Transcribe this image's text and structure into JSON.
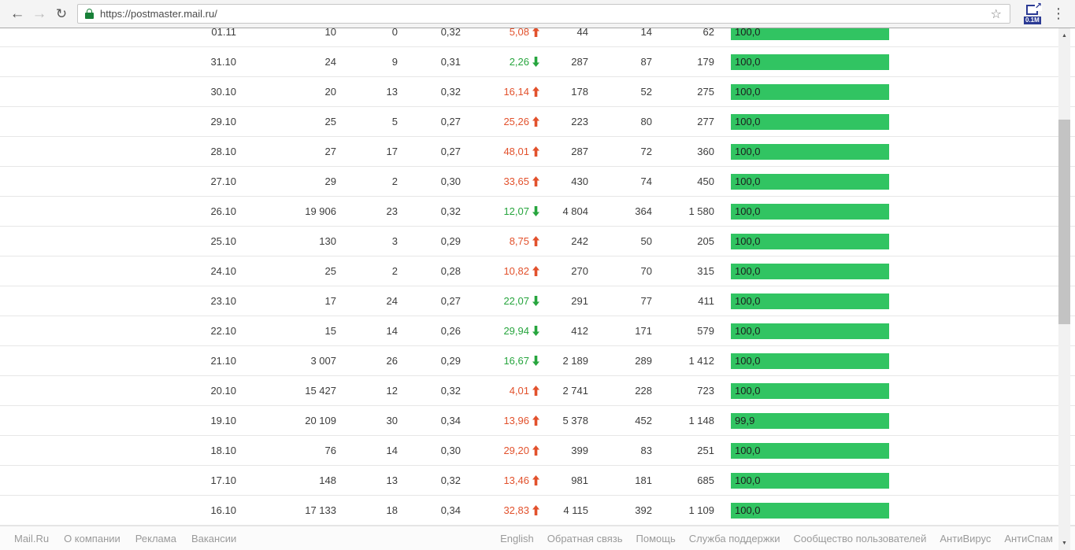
{
  "browser": {
    "url": "https://postmaster.mail.ru/",
    "extension_badge": "0.1M",
    "icons": {
      "back": "←",
      "forward": "→",
      "reload": "↻",
      "star": "☆",
      "menu": "⋮",
      "extension_arrow": "↗",
      "scroll_up": "▲",
      "scroll_down": "▼"
    }
  },
  "colors": {
    "bar_green": "#31c462",
    "arrow_up_red": "#e2512c",
    "arrow_down_green": "#27a53e",
    "lock_green": "#188038"
  },
  "table": {
    "rows": [
      {
        "date": "01.11",
        "v1": "10",
        "v2": "0",
        "v3": "0,32",
        "pct": "5,08",
        "trend": "up",
        "v4": "44",
        "v5": "14",
        "v6": "62",
        "bar_label": "100,0",
        "bar_value": 100.0
      },
      {
        "date": "31.10",
        "v1": "24",
        "v2": "9",
        "v3": "0,31",
        "pct": "2,26",
        "trend": "down",
        "v4": "287",
        "v5": "87",
        "v6": "179",
        "bar_label": "100,0",
        "bar_value": 100.0
      },
      {
        "date": "30.10",
        "v1": "20",
        "v2": "13",
        "v3": "0,32",
        "pct": "16,14",
        "trend": "up",
        "v4": "178",
        "v5": "52",
        "v6": "275",
        "bar_label": "100,0",
        "bar_value": 100.0
      },
      {
        "date": "29.10",
        "v1": "25",
        "v2": "5",
        "v3": "0,27",
        "pct": "25,26",
        "trend": "up",
        "v4": "223",
        "v5": "80",
        "v6": "277",
        "bar_label": "100,0",
        "bar_value": 100.0
      },
      {
        "date": "28.10",
        "v1": "27",
        "v2": "17",
        "v3": "0,27",
        "pct": "48,01",
        "trend": "up",
        "v4": "287",
        "v5": "72",
        "v6": "360",
        "bar_label": "100,0",
        "bar_value": 100.0
      },
      {
        "date": "27.10",
        "v1": "29",
        "v2": "2",
        "v3": "0,30",
        "pct": "33,65",
        "trend": "up",
        "v4": "430",
        "v5": "74",
        "v6": "450",
        "bar_label": "100,0",
        "bar_value": 100.0
      },
      {
        "date": "26.10",
        "v1": "19 906",
        "v2": "23",
        "v3": "0,32",
        "pct": "12,07",
        "trend": "down",
        "v4": "4 804",
        "v5": "364",
        "v6": "1 580",
        "bar_label": "100,0",
        "bar_value": 100.0
      },
      {
        "date": "25.10",
        "v1": "130",
        "v2": "3",
        "v3": "0,29",
        "pct": "8,75",
        "trend": "up",
        "v4": "242",
        "v5": "50",
        "v6": "205",
        "bar_label": "100,0",
        "bar_value": 100.0
      },
      {
        "date": "24.10",
        "v1": "25",
        "v2": "2",
        "v3": "0,28",
        "pct": "10,82",
        "trend": "up",
        "v4": "270",
        "v5": "70",
        "v6": "315",
        "bar_label": "100,0",
        "bar_value": 100.0
      },
      {
        "date": "23.10",
        "v1": "17",
        "v2": "24",
        "v3": "0,27",
        "pct": "22,07",
        "trend": "down",
        "v4": "291",
        "v5": "77",
        "v6": "411",
        "bar_label": "100,0",
        "bar_value": 100.0
      },
      {
        "date": "22.10",
        "v1": "15",
        "v2": "14",
        "v3": "0,26",
        "pct": "29,94",
        "trend": "down",
        "v4": "412",
        "v5": "171",
        "v6": "579",
        "bar_label": "100,0",
        "bar_value": 100.0
      },
      {
        "date": "21.10",
        "v1": "3 007",
        "v2": "26",
        "v3": "0,29",
        "pct": "16,67",
        "trend": "down",
        "v4": "2 189",
        "v5": "289",
        "v6": "1 412",
        "bar_label": "100,0",
        "bar_value": 100.0
      },
      {
        "date": "20.10",
        "v1": "15 427",
        "v2": "12",
        "v3": "0,32",
        "pct": "4,01",
        "trend": "up",
        "v4": "2 741",
        "v5": "228",
        "v6": "723",
        "bar_label": "100,0",
        "bar_value": 100.0
      },
      {
        "date": "19.10",
        "v1": "20 109",
        "v2": "30",
        "v3": "0,34",
        "pct": "13,96",
        "trend": "up",
        "v4": "5 378",
        "v5": "452",
        "v6": "1 148",
        "bar_label": "99,9",
        "bar_value": 99.9
      },
      {
        "date": "18.10",
        "v1": "76",
        "v2": "14",
        "v3": "0,30",
        "pct": "29,20",
        "trend": "up",
        "v4": "399",
        "v5": "83",
        "v6": "251",
        "bar_label": "100,0",
        "bar_value": 100.0
      },
      {
        "date": "17.10",
        "v1": "148",
        "v2": "13",
        "v3": "0,32",
        "pct": "13,46",
        "trend": "up",
        "v4": "981",
        "v5": "181",
        "v6": "685",
        "bar_label": "100,0",
        "bar_value": 100.0
      },
      {
        "date": "16.10",
        "v1": "17 133",
        "v2": "18",
        "v3": "0,34",
        "pct": "32,83",
        "trend": "up",
        "v4": "4 115",
        "v5": "392",
        "v6": "1 109",
        "bar_label": "100,0",
        "bar_value": 100.0
      }
    ]
  },
  "footer": {
    "left": [
      "Mail.Ru",
      "О компании",
      "Реклама",
      "Вакансии"
    ],
    "right": [
      "English",
      "Обратная связь",
      "Помощь",
      "Служба поддержки",
      "Сообщество пользователей",
      "АнтиВирус",
      "АнтиСпам"
    ]
  }
}
